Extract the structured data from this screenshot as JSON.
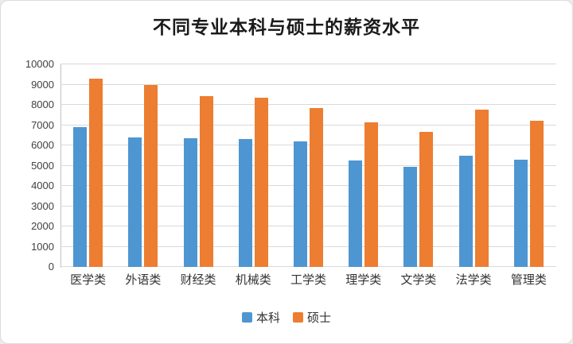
{
  "title": "不同专业本科与硕士的薪资水平",
  "colors": {
    "undergrad_bar": "#4E96D1",
    "master_bar": "#ED7D31",
    "gridline": "#D9D9D9",
    "axis_line": "#C0C0C0",
    "axis_text": "#404040",
    "title_text": "#1A1A1A"
  },
  "chart_data": {
    "type": "bar",
    "title": "不同专业本科与硕士的薪资水平",
    "categories": [
      "医学类",
      "外语类",
      "财经类",
      "机械类",
      "工学类",
      "理学类",
      "文学类",
      "法学类",
      "管理类"
    ],
    "series": [
      {
        "name": "本科",
        "color": "#4E96D1",
        "values": [
          6900,
          6400,
          6350,
          6300,
          6200,
          5250,
          4950,
          5500,
          5300
        ]
      },
      {
        "name": "硕士",
        "color": "#ED7D31",
        "values": [
          9300,
          9000,
          8450,
          8350,
          7850,
          7150,
          6650,
          7750,
          7200
        ]
      }
    ],
    "xlabel": "",
    "ylabel": "",
    "ylim": [
      0,
      10000
    ],
    "yticks": [
      0,
      1000,
      2000,
      3000,
      4000,
      5000,
      6000,
      7000,
      8000,
      9000,
      10000
    ],
    "ytick_labels": [
      "0",
      "1000",
      "2000",
      "3000",
      "4000",
      "5000",
      "6000",
      "7000",
      "8000",
      "9000",
      "10000"
    ],
    "grid": "horizontal",
    "legend_position": "bottom",
    "legend_labels": [
      "本科",
      "硕士"
    ]
  }
}
